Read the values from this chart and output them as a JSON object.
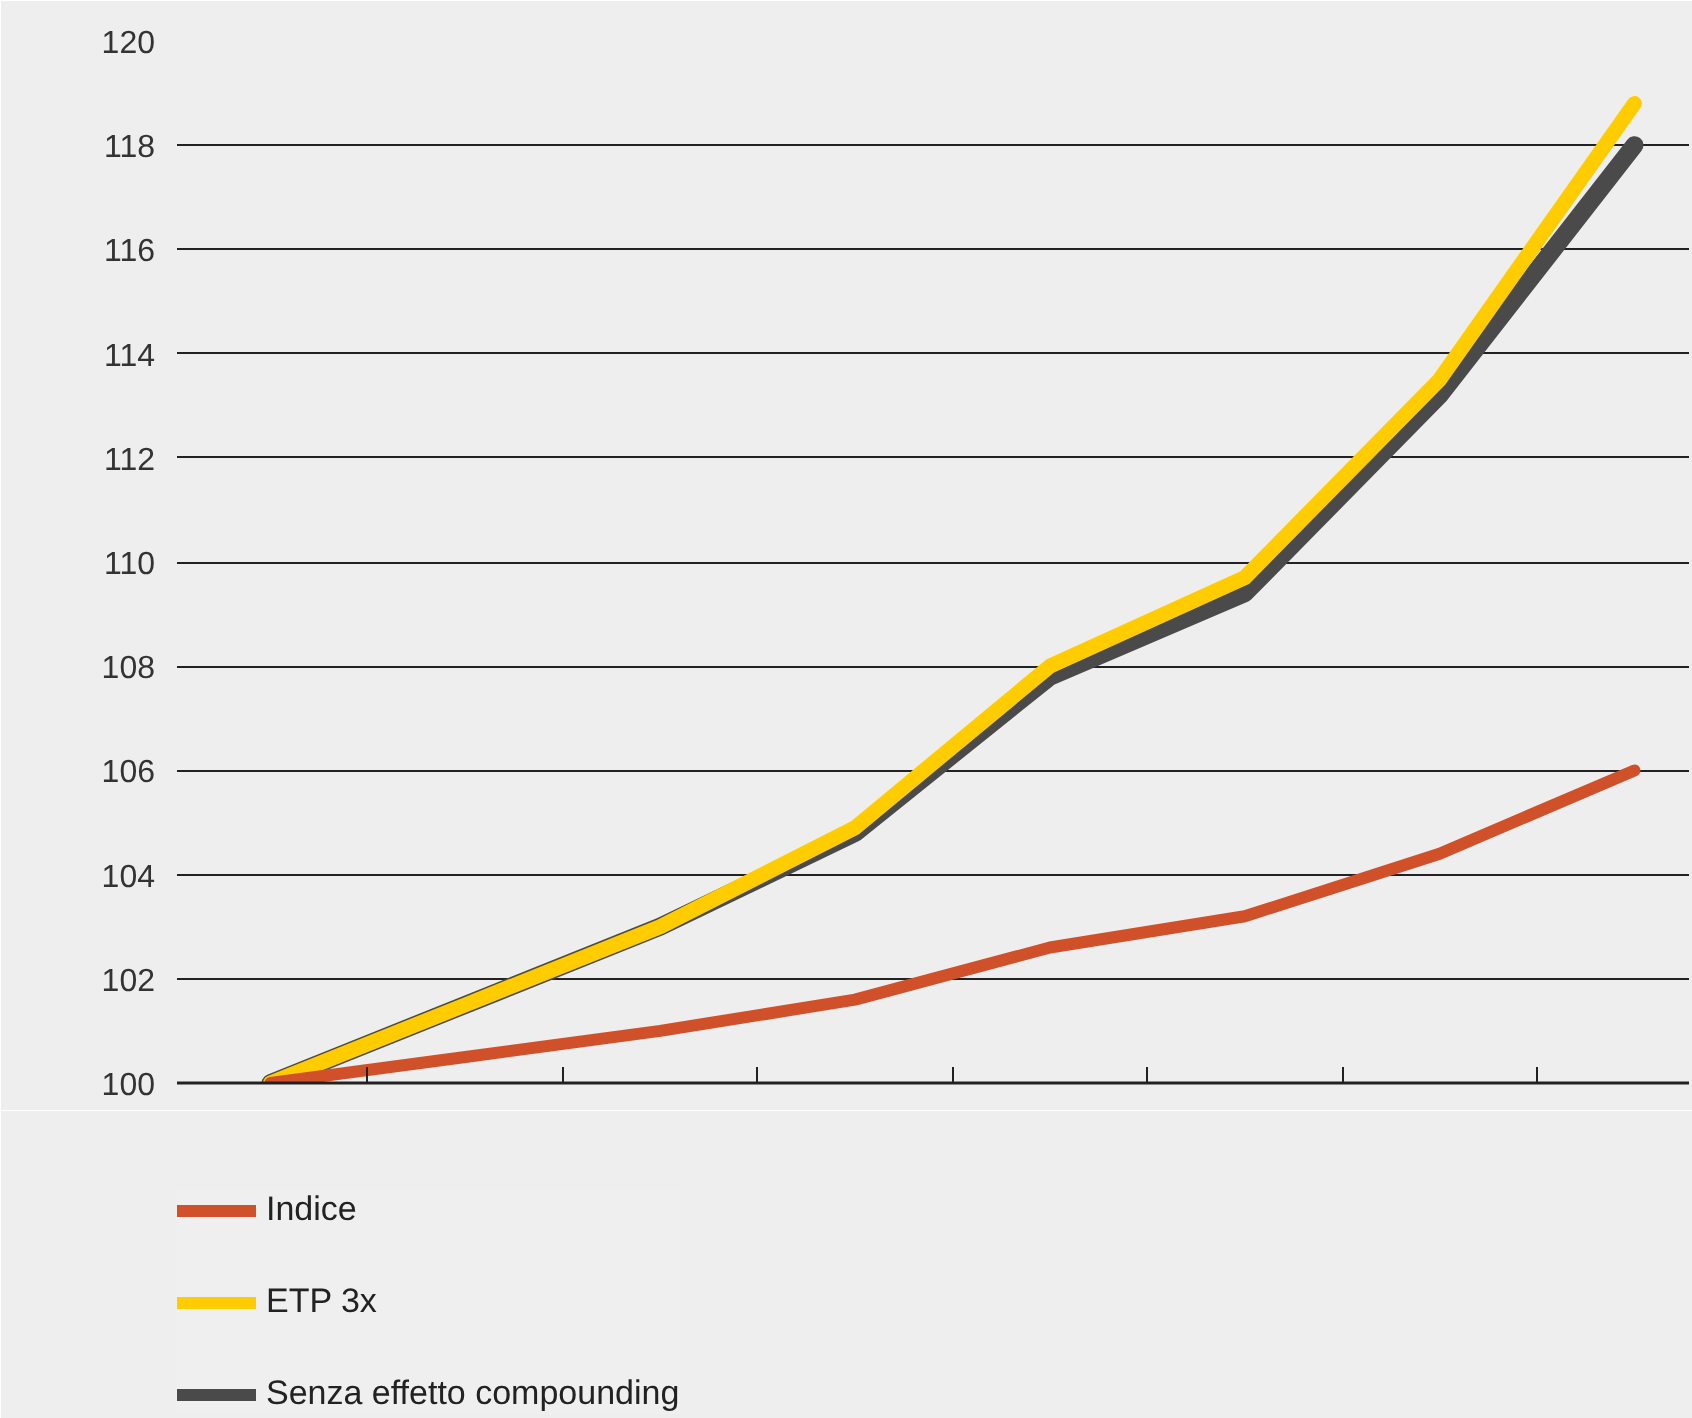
{
  "chart_data": {
    "type": "line",
    "categories": [
      null,
      null,
      null,
      null,
      null,
      null,
      null,
      null
    ],
    "series": [
      {
        "name": "Indice",
        "color": "#d0502a",
        "values": [
          100,
          100.5,
          101,
          101.6,
          102.6,
          103.2,
          104.4,
          106
        ]
      },
      {
        "name": "ETP 3x",
        "color": "#ffcc00",
        "values": [
          100,
          101.5,
          103,
          104.9,
          108,
          109.7,
          113.5,
          118.8
        ]
      },
      {
        "name": "Senza effetto compounding",
        "color": "#4a4a4a",
        "values": [
          100,
          101.5,
          103,
          104.8,
          107.8,
          109.4,
          113.2,
          118.0
        ]
      }
    ],
    "ylim": [
      100,
      120
    ],
    "yticks": [
      100,
      102,
      104,
      106,
      108,
      110,
      112,
      114,
      116,
      118,
      120
    ],
    "grid": "y",
    "legend": "bottom",
    "marker": "none",
    "line_style": "solid"
  }
}
